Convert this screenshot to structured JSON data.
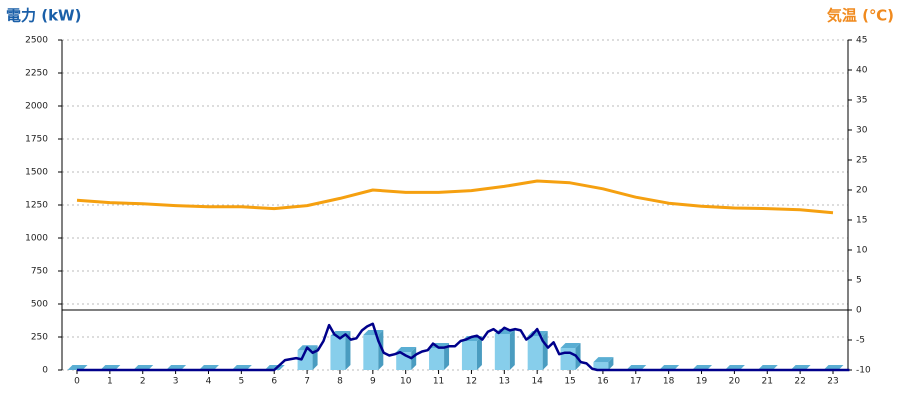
{
  "chart_data": {
    "type": "bar",
    "title_left": "電力 (kW)",
    "title_right": "気温 (℃)",
    "categories": [
      "0",
      "1",
      "2",
      "3",
      "4",
      "5",
      "6",
      "7",
      "8",
      "9",
      "10",
      "11",
      "12",
      "13",
      "14",
      "15",
      "16",
      "17",
      "18",
      "19",
      "20",
      "21",
      "22",
      "23"
    ],
    "ylim": [
      0,
      2500
    ],
    "yticks": [
      0,
      250,
      500,
      750,
      1000,
      1250,
      1500,
      1750,
      2000,
      2250,
      2500
    ],
    "y2lim": [
      -10,
      45
    ],
    "y2ticks": [
      -10,
      -5,
      0,
      5,
      10,
      15,
      20,
      25,
      30,
      35,
      40,
      45
    ],
    "grid": true,
    "series": [
      {
        "type": "bar",
        "color": "#87ceeb",
        "values": [
          0,
          0,
          0,
          0,
          0,
          0,
          0,
          150,
          258,
          265,
          136,
          167,
          220,
          273,
          258,
          167,
          60,
          0,
          0,
          0,
          0,
          0,
          0,
          0
        ]
      },
      {
        "type": "line",
        "color": "#00008b",
        "x": [
          0,
          6,
          6.33,
          6.67,
          6.83,
          7,
          7.17,
          7.33,
          7.5,
          7.67,
          7.83,
          8,
          8.17,
          8.33,
          8.5,
          8.67,
          8.83,
          9,
          9.17,
          9.33,
          9.5,
          9.67,
          9.83,
          10,
          10.17,
          10.33,
          10.5,
          10.67,
          10.83,
          11,
          11.17,
          11.33,
          11.5,
          11.67,
          11.83,
          12,
          12.17,
          12.33,
          12.5,
          12.67,
          12.83,
          13,
          13.17,
          13.33,
          13.5,
          13.67,
          13.83,
          14,
          14.17,
          14.33,
          14.5,
          14.67,
          14.83,
          15,
          15.17,
          15.33,
          15.5,
          15.67,
          15.83,
          16,
          23.5
        ],
        "values": [
          0,
          0,
          75,
          90,
          80,
          170,
          130,
          150,
          220,
          340,
          270,
          240,
          270,
          230,
          240,
          300,
          330,
          350,
          220,
          130,
          110,
          120,
          135,
          110,
          90,
          120,
          140,
          150,
          200,
          170,
          170,
          180,
          180,
          220,
          230,
          250,
          260,
          230,
          290,
          310,
          280,
          320,
          300,
          310,
          300,
          230,
          260,
          310,
          220,
          170,
          210,
          120,
          130,
          130,
          110,
          60,
          50,
          10,
          0,
          0,
          0
        ]
      },
      {
        "type": "line",
        "axis": "y2",
        "color": "#f5a010",
        "values": [
          18.3,
          17.9,
          17.7,
          17.4,
          17.2,
          17.2,
          16.9,
          17.4,
          18.6,
          20.0,
          19.6,
          19.6,
          19.9,
          20.6,
          21.5,
          21.2,
          20.2,
          18.8,
          17.8,
          17.3,
          17.0,
          16.9,
          16.7,
          16.2
        ]
      }
    ]
  }
}
